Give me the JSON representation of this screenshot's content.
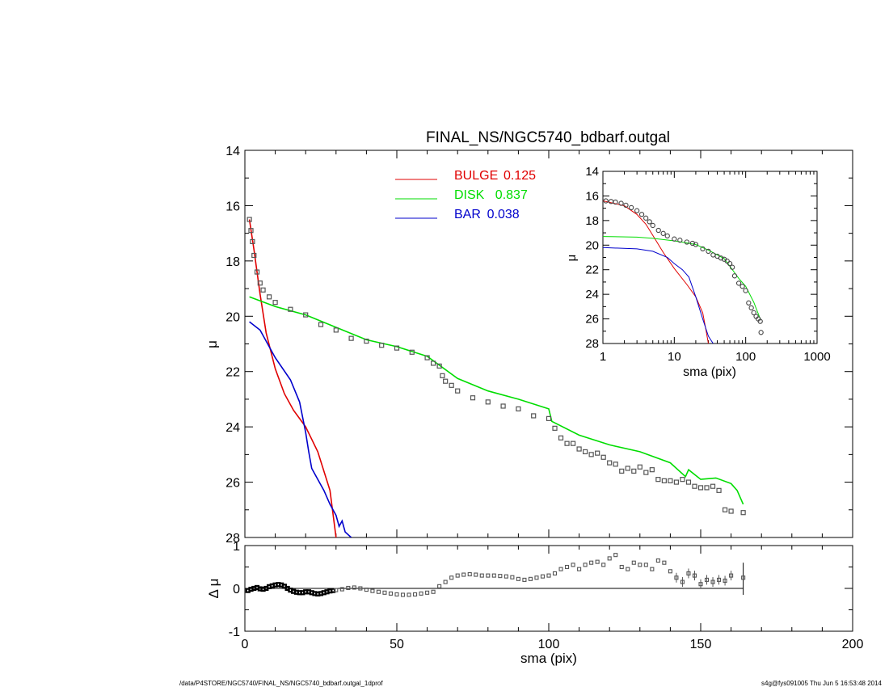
{
  "chart_data": [
    {
      "type": "line",
      "title": "FINAL_NS/NGC5740_bdbarf.outgal",
      "xlabel": "",
      "ylabel": "μ",
      "xlim": [
        0,
        200
      ],
      "ylim": [
        28,
        14
      ],
      "y_inverted": true,
      "grid": false,
      "legend_position": "top-center",
      "yticks": [
        "14",
        "16",
        "18",
        "20",
        "22",
        "24",
        "26",
        "28"
      ],
      "colors": {
        "BULGE": "#e00000",
        "DISK": "#00dd00",
        "BAR": "#0000cc",
        "data": "#555555"
      },
      "legend": [
        {
          "label": "BULGE",
          "value": "0.125",
          "color": "#e00000"
        },
        {
          "label": "DISK",
          "value": "0.837",
          "color": "#00dd00"
        },
        {
          "label": "BAR",
          "value": "0.038",
          "color": "#0000cc"
        }
      ],
      "series": [
        {
          "name": "BULGE",
          "x": [
            1.5,
            3,
            5,
            7,
            10,
            13,
            16,
            20,
            24,
            28,
            30
          ],
          "values": [
            16.5,
            17.6,
            19.2,
            20.6,
            21.9,
            22.8,
            23.4,
            24.0,
            24.9,
            26.3,
            28.0
          ]
        },
        {
          "name": "DISK",
          "x": [
            1.5,
            10,
            20,
            30,
            40,
            50,
            60,
            70,
            80,
            90,
            100,
            101,
            110,
            120,
            130,
            140,
            145,
            146,
            150,
            155,
            160,
            162,
            164
          ],
          "values": [
            19.3,
            19.65,
            19.95,
            20.4,
            20.85,
            21.1,
            21.45,
            22.25,
            22.7,
            23.0,
            23.35,
            23.8,
            24.3,
            24.65,
            24.9,
            25.3,
            25.8,
            25.55,
            25.9,
            25.85,
            26.05,
            26.3,
            26.8
          ]
        },
        {
          "name": "BAR",
          "x": [
            1.5,
            5,
            10,
            15,
            18,
            20,
            21,
            22,
            24,
            26,
            28,
            30,
            31,
            32,
            33,
            35
          ],
          "values": [
            20.2,
            20.5,
            21.5,
            22.3,
            23.1,
            24.2,
            24.9,
            25.5,
            25.9,
            26.3,
            26.8,
            27.2,
            27.6,
            27.4,
            27.8,
            28.0
          ]
        },
        {
          "name": "data",
          "x": [
            1.5,
            2,
            2.5,
            3,
            4,
            5,
            6,
            8,
            10,
            15,
            20,
            25,
            30,
            35,
            40,
            45,
            50,
            55,
            60,
            62,
            64,
            65,
            66,
            68,
            70,
            75,
            80,
            85,
            90,
            95,
            100,
            102,
            104,
            106,
            108,
            110,
            112,
            114,
            116,
            118,
            120,
            122,
            124,
            126,
            128,
            130,
            132,
            134,
            136,
            138,
            140,
            142,
            144,
            146,
            148,
            150,
            152,
            154,
            156,
            158,
            160,
            164
          ],
          "values": [
            16.5,
            16.9,
            17.3,
            17.8,
            18.4,
            18.8,
            19.05,
            19.3,
            19.5,
            19.75,
            19.95,
            20.3,
            20.5,
            20.8,
            20.9,
            21.05,
            21.15,
            21.3,
            21.5,
            21.7,
            21.8,
            22.15,
            22.35,
            22.5,
            22.7,
            22.95,
            23.1,
            23.25,
            23.35,
            23.6,
            23.7,
            24.05,
            24.4,
            24.6,
            24.6,
            24.8,
            24.9,
            25.0,
            24.95,
            25.1,
            25.3,
            25.35,
            25.6,
            25.5,
            25.6,
            25.45,
            25.65,
            25.55,
            25.9,
            25.95,
            25.95,
            26.0,
            25.9,
            26.0,
            26.15,
            26.2,
            26.2,
            26.15,
            26.3,
            27.0,
            27.05,
            27.1
          ]
        }
      ]
    },
    {
      "type": "scatter",
      "xlabel": "sma (pix)",
      "ylabel": "Δ μ",
      "xlim": [
        0,
        200
      ],
      "ylim": [
        -1,
        1
      ],
      "grid": false,
      "xticks": [
        "0",
        "50",
        "100",
        "150",
        "200"
      ],
      "yticks": [
        "1",
        "0",
        "-1"
      ],
      "series": [
        {
          "name": "residual",
          "x": [
            1,
            2,
            3,
            4,
            5,
            6,
            7,
            8,
            9,
            10,
            11,
            12,
            13,
            14,
            15,
            16,
            17,
            18,
            19,
            20,
            21,
            22,
            23,
            24,
            25,
            26,
            27,
            28,
            29,
            30,
            32,
            34,
            36,
            38,
            40,
            42,
            44,
            46,
            48,
            50,
            52,
            54,
            56,
            58,
            60,
            62,
            64,
            66,
            68,
            70,
            72,
            74,
            76,
            78,
            80,
            82,
            84,
            86,
            88,
            90,
            92,
            94,
            96,
            98,
            100,
            102,
            104,
            106,
            108,
            110,
            112,
            114,
            116,
            118,
            120,
            122,
            124,
            126,
            128,
            130,
            132,
            134,
            136,
            138,
            140,
            142,
            144,
            146,
            148,
            150,
            152,
            154,
            156,
            158,
            160,
            164
          ],
          "values": [
            -0.05,
            -0.02,
            0.0,
            0.02,
            -0.01,
            -0.02,
            0.0,
            0.04,
            0.06,
            0.08,
            0.09,
            0.08,
            0.05,
            0.0,
            -0.04,
            -0.07,
            -0.09,
            -0.1,
            -0.1,
            -0.08,
            -0.08,
            -0.1,
            -0.12,
            -0.13,
            -0.12,
            -0.1,
            -0.08,
            -0.06,
            -0.05,
            -0.04,
            -0.02,
            0.01,
            0.02,
            0.0,
            -0.03,
            -0.06,
            -0.08,
            -0.1,
            -0.12,
            -0.14,
            -0.15,
            -0.15,
            -0.14,
            -0.12,
            -0.1,
            -0.08,
            0.05,
            0.15,
            0.25,
            0.3,
            0.32,
            0.33,
            0.32,
            0.3,
            0.3,
            0.3,
            0.29,
            0.28,
            0.26,
            0.22,
            0.2,
            0.22,
            0.25,
            0.28,
            0.3,
            0.35,
            0.45,
            0.5,
            0.55,
            0.45,
            0.55,
            0.6,
            0.62,
            0.55,
            0.7,
            0.78,
            0.5,
            0.45,
            0.6,
            0.55,
            0.55,
            0.45,
            0.65,
            0.6,
            0.4,
            0.25,
            0.15,
            0.35,
            0.3,
            0.1,
            0.2,
            0.15,
            0.2,
            0.18,
            0.3,
            0.25
          ]
        }
      ]
    },
    {
      "type": "scatter",
      "xlabel": "sma (pix)",
      "ylabel": "μ",
      "x_scale": "log",
      "xlim": [
        1,
        1000
      ],
      "ylim": [
        28,
        14
      ],
      "y_inverted": true,
      "grid": false,
      "xticks": [
        "1",
        "10",
        "100",
        "1000"
      ],
      "yticks": [
        "14",
        "16",
        "18",
        "20",
        "22",
        "24",
        "26",
        "28"
      ],
      "series": [
        {
          "name": "BULGE",
          "x": [
            1,
            2,
            3,
            4,
            5,
            7,
            10,
            15,
            20,
            25,
            28,
            30
          ],
          "values": [
            16.4,
            16.8,
            17.5,
            18.3,
            19.2,
            20.6,
            21.9,
            23.2,
            24.2,
            25.5,
            27.0,
            28.0
          ]
        },
        {
          "name": "DISK",
          "x": [
            1,
            3,
            5,
            10,
            20,
            30,
            50,
            80,
            100,
            130,
            160
          ],
          "values": [
            19.3,
            19.35,
            19.45,
            19.65,
            19.95,
            20.4,
            21.1,
            22.7,
            23.35,
            24.65,
            26.0
          ]
        },
        {
          "name": "BAR",
          "x": [
            1,
            3,
            5,
            8,
            10,
            13,
            16,
            20,
            25,
            30,
            35
          ],
          "values": [
            20.2,
            20.3,
            20.5,
            21.0,
            21.5,
            22.0,
            22.6,
            24.2,
            26.0,
            27.4,
            28.0
          ]
        },
        {
          "name": "data",
          "x": [
            1.1,
            1.3,
            1.5,
            1.8,
            2.1,
            2.5,
            3,
            3.5,
            4,
            4.5,
            5,
            6,
            7,
            8,
            10,
            12,
            15,
            18,
            20,
            25,
            30,
            35,
            40,
            45,
            50,
            55,
            60,
            65,
            70,
            80,
            90,
            100,
            110,
            120,
            130,
            140,
            150,
            160,
            164
          ],
          "values": [
            16.4,
            16.45,
            16.5,
            16.6,
            16.75,
            16.95,
            17.2,
            17.5,
            17.8,
            18.1,
            18.4,
            18.8,
            19.05,
            19.25,
            19.5,
            19.6,
            19.75,
            19.85,
            19.95,
            20.3,
            20.5,
            20.8,
            20.9,
            21.05,
            21.15,
            21.3,
            21.5,
            21.8,
            22.5,
            23.1,
            23.35,
            23.7,
            24.7,
            25.1,
            25.5,
            25.8,
            26.0,
            26.2,
            27.1
          ]
        }
      ]
    }
  ],
  "footer": {
    "left": "/data/P4STORE/NGC5740/FINAL_NS/NGC5740_bdbarf.outgal_1dprof",
    "right": "s4g@fys091005  Thu Jun  5 16:53:48 2014"
  }
}
